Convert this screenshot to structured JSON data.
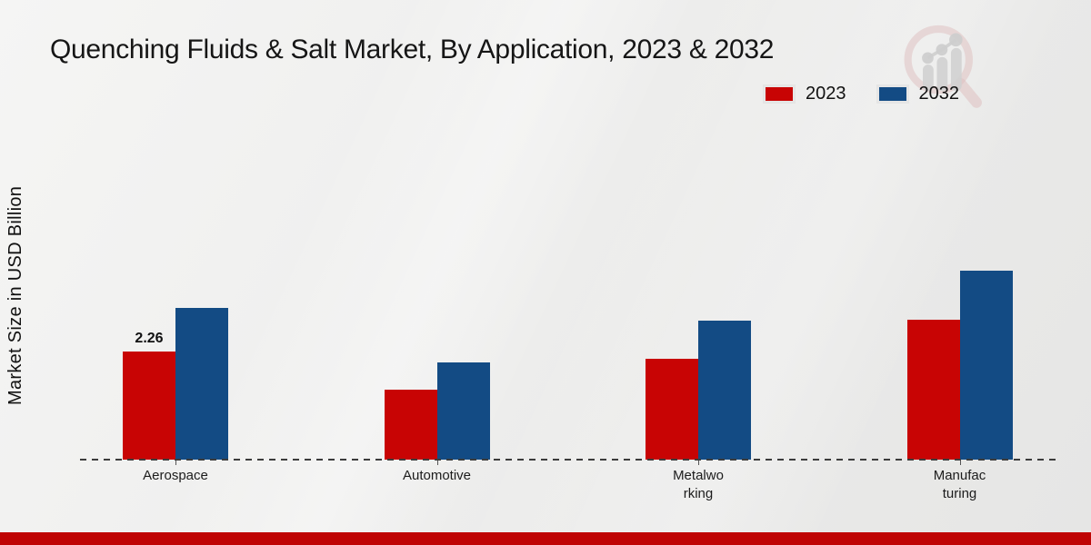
{
  "chart_data": {
    "type": "bar",
    "title": "Quenching Fluids & Salt Market, By Application, 2023 & 2032",
    "ylabel": "Market Size in USD Billion",
    "xlabel": "",
    "categories": [
      "Aerospace",
      "Automotive",
      "Metalworking",
      "Manufacturing"
    ],
    "category_label_lines": [
      [
        "Aerospace"
      ],
      [
        "Automotive"
      ],
      [
        "Metalwo",
        "rking"
      ],
      [
        "Manufac",
        "turing"
      ]
    ],
    "series": [
      {
        "name": "2023",
        "color": "#c80404",
        "values": [
          2.26,
          1.46,
          2.11,
          2.92
        ]
      },
      {
        "name": "2032",
        "color": "#134b84",
        "values": [
          3.17,
          2.03,
          2.9,
          3.95
        ]
      }
    ],
    "bar_label": {
      "category_index": 0,
      "series_index": 0,
      "text": "2.26"
    },
    "ylim": [
      0,
      4.5
    ],
    "grid": false,
    "legend_position": "top-right",
    "baseline_style": "dashed"
  },
  "legend": {
    "items": [
      {
        "label": "2023",
        "color": "#c80404"
      },
      {
        "label": "2032",
        "color": "#134b84"
      }
    ]
  },
  "branding": {
    "logo_icon": "growth-magnifier-logo-icon"
  },
  "footer": {
    "accent_bar_color": "#bf0404"
  }
}
